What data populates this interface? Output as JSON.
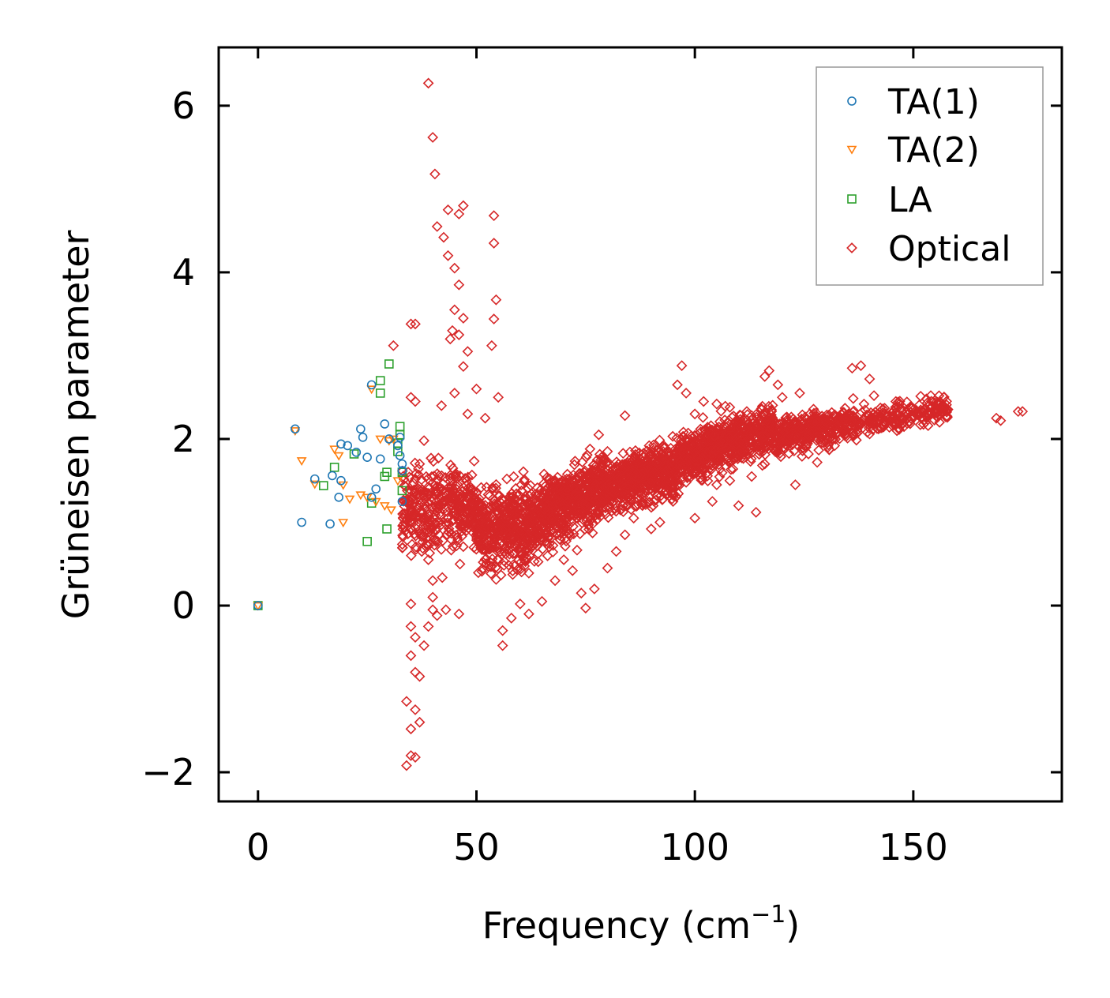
{
  "chart_data": {
    "type": "scatter",
    "title": "",
    "xlabel_main": "Frequency (cm",
    "xlabel_sup": "−1",
    "xlabel_close": ")",
    "ylabel": "Grüneisen parameter",
    "xlim": [
      -9,
      184
    ],
    "ylim": [
      -2.35,
      6.7
    ],
    "xticks": [
      0,
      50,
      100,
      150
    ],
    "xtick_labels": [
      "0",
      "50",
      "100",
      "150"
    ],
    "yticks": [
      -2,
      0,
      2,
      4,
      6
    ],
    "ytick_labels": [
      "−2",
      "0",
      "2",
      "4",
      "6"
    ],
    "legend_position": "top-right",
    "series": [
      {
        "name": "TA(1)",
        "marker": "circle",
        "color": "#1f77b4",
        "points": [
          [
            0,
            0
          ],
          [
            8.5,
            2.12
          ],
          [
            10,
            1.0
          ],
          [
            13,
            1.52
          ],
          [
            16.5,
            0.98
          ],
          [
            17,
            1.56
          ],
          [
            18.5,
            1.3
          ],
          [
            19,
            1.5
          ],
          [
            19,
            1.94
          ],
          [
            20.5,
            1.92
          ],
          [
            22.5,
            1.84
          ],
          [
            23.5,
            2.12
          ],
          [
            24,
            2.02
          ],
          [
            25,
            1.78
          ],
          [
            26,
            1.3
          ],
          [
            26,
            2.65
          ],
          [
            27,
            1.4
          ],
          [
            28,
            1.76
          ],
          [
            29,
            2.18
          ],
          [
            30,
            2.0
          ],
          [
            32,
            1.92
          ],
          [
            32.5,
            1.8
          ],
          [
            33,
            1.7
          ],
          [
            32.5,
            2.02
          ],
          [
            33,
            1.25
          ],
          [
            33,
            1.62
          ]
        ]
      },
      {
        "name": "TA(2)",
        "marker": "triangle-down",
        "color": "#ff7f0e",
        "points": [
          [
            0,
            0
          ],
          [
            8.5,
            2.1
          ],
          [
            10,
            1.74
          ],
          [
            13,
            1.46
          ],
          [
            17.5,
            1.88
          ],
          [
            18.5,
            1.8
          ],
          [
            19.5,
            1.45
          ],
          [
            19.5,
            1.0
          ],
          [
            21,
            1.28
          ],
          [
            23.5,
            1.33
          ],
          [
            25,
            1.3
          ],
          [
            26,
            2.6
          ],
          [
            27,
            1.25
          ],
          [
            28,
            2.0
          ],
          [
            29,
            1.2
          ],
          [
            30,
            1.98
          ],
          [
            31,
            2.0
          ],
          [
            30.5,
            1.15
          ],
          [
            32,
            1.5
          ]
        ]
      },
      {
        "name": "LA",
        "marker": "square",
        "color": "#2ca02c",
        "points": [
          [
            0,
            0
          ],
          [
            15,
            1.44
          ],
          [
            17.5,
            1.66
          ],
          [
            22,
            1.82
          ],
          [
            25,
            0.77
          ],
          [
            26,
            1.23
          ],
          [
            28,
            2.55
          ],
          [
            28,
            2.7
          ],
          [
            29,
            1.55
          ],
          [
            29.5,
            1.6
          ],
          [
            29.5,
            0.92
          ],
          [
            30,
            2.9
          ],
          [
            32,
            1.95
          ],
          [
            32.5,
            2.15
          ],
          [
            32.5,
            2.05
          ],
          [
            33,
            1.6
          ],
          [
            33,
            1.38
          ],
          [
            32,
            1.85
          ]
        ]
      },
      {
        "name": "Optical",
        "marker": "diamond",
        "color": "#d62728",
        "points": [
          [
            39,
            6.27
          ],
          [
            40,
            5.62
          ],
          [
            40.5,
            5.18
          ],
          [
            41,
            4.55
          ],
          [
            43.5,
            4.75
          ],
          [
            46,
            4.7
          ],
          [
            47,
            4.8
          ],
          [
            54,
            4.68
          ],
          [
            54,
            4.35
          ],
          [
            42.5,
            4.42
          ],
          [
            43.5,
            4.2
          ],
          [
            45,
            4.05
          ],
          [
            46,
            3.85
          ],
          [
            54.5,
            3.67
          ],
          [
            45,
            3.55
          ],
          [
            47,
            3.45
          ],
          [
            54,
            3.44
          ],
          [
            35,
            3.38
          ],
          [
            36,
            3.38
          ],
          [
            44.5,
            3.3
          ],
          [
            46,
            3.25
          ],
          [
            44,
            3.2
          ],
          [
            53.5,
            3.12
          ],
          [
            31,
            3.12
          ],
          [
            47,
            2.87
          ],
          [
            48,
            3.05
          ],
          [
            50,
            2.6
          ],
          [
            45,
            2.55
          ],
          [
            55,
            2.5
          ],
          [
            42,
            2.4
          ],
          [
            35,
            2.5
          ],
          [
            36,
            2.45
          ],
          [
            48,
            2.3
          ],
          [
            52,
            2.25
          ],
          [
            38,
            1.98
          ],
          [
            37,
            1.7
          ],
          [
            36,
            1.52
          ],
          [
            37,
            1.2
          ],
          [
            36,
            1.05
          ],
          [
            38,
            0.88
          ],
          [
            39,
            0.72
          ],
          [
            39,
            0.55
          ],
          [
            40,
            0.3
          ],
          [
            40,
            0.1
          ],
          [
            40,
            -0.05
          ],
          [
            41,
            -0.12
          ],
          [
            39,
            -0.25
          ],
          [
            38,
            -0.48
          ],
          [
            35,
            0.02
          ],
          [
            35,
            -0.25
          ],
          [
            36,
            -0.38
          ],
          [
            35,
            -0.6
          ],
          [
            36,
            -0.8
          ],
          [
            37,
            -0.85
          ],
          [
            34,
            -1.15
          ],
          [
            36,
            -1.25
          ],
          [
            37,
            -1.4
          ],
          [
            35,
            -1.48
          ],
          [
            35,
            -1.8
          ],
          [
            36,
            -1.82
          ],
          [
            34,
            -1.92
          ],
          [
            46,
            -0.1
          ],
          [
            43,
            -0.05
          ],
          [
            56,
            -0.48
          ],
          [
            56,
            -0.3
          ],
          [
            58,
            -0.15
          ],
          [
            60,
            0.02
          ],
          [
            62,
            -0.1
          ],
          [
            65,
            0.05
          ],
          [
            68,
            0.3
          ],
          [
            74,
            0.15
          ],
          [
            75,
            -0.03
          ],
          [
            77,
            0.2
          ],
          [
            80,
            0.45
          ],
          [
            82,
            0.65
          ],
          [
            84,
            0.85
          ],
          [
            86,
            1.05
          ],
          [
            90,
            0.92
          ],
          [
            95,
            1.25
          ],
          [
            97,
            2.88
          ],
          [
            96,
            2.65
          ],
          [
            98,
            2.55
          ],
          [
            100,
            2.3
          ],
          [
            102,
            2.45
          ],
          [
            105,
            2.42
          ],
          [
            108,
            2.38
          ],
          [
            113,
            2.28
          ],
          [
            116,
            2.75
          ],
          [
            117,
            2.82
          ],
          [
            119,
            2.65
          ],
          [
            120,
            2.5
          ],
          [
            124,
            2.55
          ],
          [
            130,
            2.2
          ],
          [
            134,
            2.32
          ],
          [
            136,
            2.85
          ],
          [
            138,
            2.88
          ],
          [
            140,
            2.72
          ],
          [
            141,
            2.52
          ],
          [
            142,
            2.3
          ],
          [
            142,
            2.12
          ],
          [
            140,
            2.06
          ],
          [
            143,
            2.18
          ],
          [
            146,
            2.45
          ],
          [
            150,
            2.35
          ],
          [
            153,
            2.48
          ],
          [
            154,
            2.52
          ],
          [
            155,
            2.35
          ],
          [
            156,
            2.2
          ],
          [
            157,
            2.5
          ],
          [
            169,
            2.25
          ],
          [
            170,
            2.22
          ],
          [
            174,
            2.33
          ],
          [
            175,
            2.33
          ],
          [
            98,
            1.48
          ],
          [
            104,
            1.25
          ],
          [
            106,
            1.75
          ],
          [
            108,
            1.5
          ],
          [
            113,
            1.55
          ],
          [
            116,
            1.7
          ],
          [
            120,
            1.95
          ],
          [
            123,
            1.45
          ],
          [
            126,
            1.82
          ],
          [
            128,
            1.72
          ],
          [
            132,
            1.92
          ],
          [
            100,
            1.05
          ],
          [
            105,
            1.45
          ],
          [
            110,
            1.2
          ],
          [
            114,
            1.12
          ],
          [
            88,
            1.2
          ],
          [
            92,
            1.0
          ],
          [
            70,
            0.55
          ],
          [
            72,
            0.42
          ],
          [
            76,
            1.88
          ],
          [
            78,
            2.05
          ],
          [
            80,
            1.85
          ],
          [
            84,
            2.28
          ]
        ]
      }
    ],
    "optical_cloud": [
      {
        "x0": 33,
        "x1": 50,
        "c": 1.15,
        "m": 0.0,
        "s": 0.45,
        "n": 380
      },
      {
        "x0": 50,
        "x1": 62,
        "c": 0.95,
        "m": 0.0,
        "s": 0.42,
        "n": 420
      },
      {
        "x0": 62,
        "x1": 80,
        "c": 1.0,
        "m": 0.026,
        "s": 0.33,
        "n": 700
      },
      {
        "x0": 80,
        "x1": 96,
        "c": 1.45,
        "m": 0.012,
        "s": 0.26,
        "n": 550
      },
      {
        "x0": 96,
        "x1": 118,
        "c": 1.75,
        "m": 0.018,
        "s": 0.24,
        "n": 700
      },
      {
        "x0": 118,
        "x1": 137,
        "c": 2.0,
        "m": 0.012,
        "s": 0.18,
        "n": 380
      },
      {
        "x0": 137,
        "x1": 158,
        "c": 2.2,
        "m": 0.008,
        "s": 0.13,
        "n": 200
      }
    ]
  }
}
